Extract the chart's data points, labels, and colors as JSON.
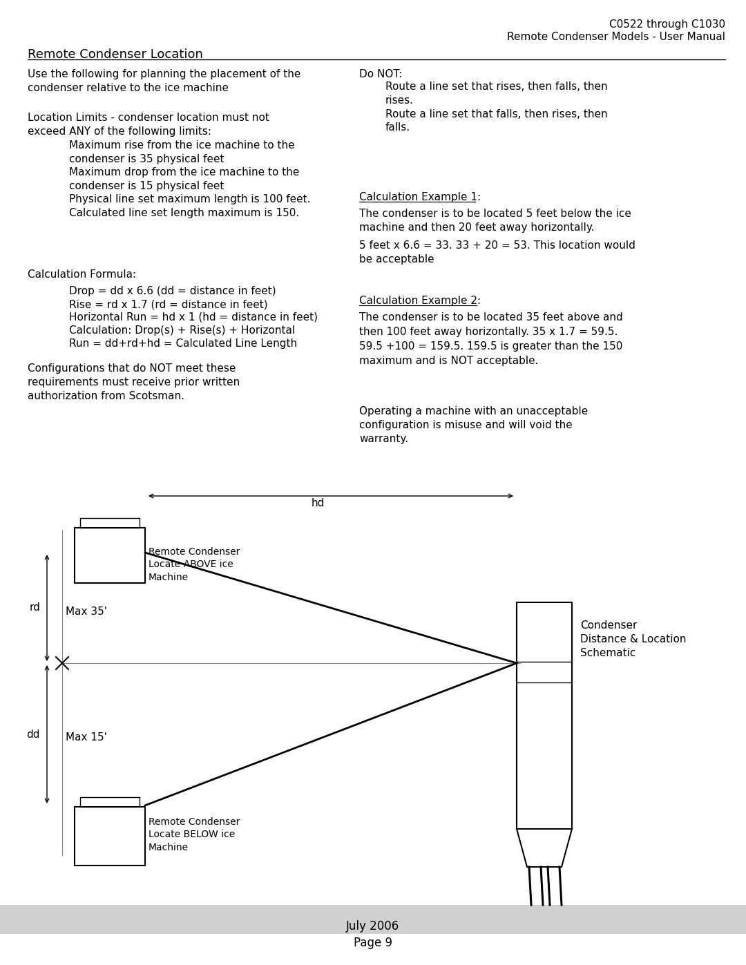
{
  "header_right_line1": "C0522 through C1030",
  "header_right_line2": "Remote Condenser Models - User Manual",
  "section_title": "Remote Condenser Location",
  "col1_para1": "Use the following for planning the placement of the\ncondenser relative to the ice machine",
  "col2_donot_title": "Do NOT:",
  "col2_donot_body": "Route a line set that rises, then falls, then\nrises.\nRoute a line set that falls, then rises, then\nfalls.",
  "col1_limits_title": "Location Limits - condenser location must not\nexceed ANY of the following limits:",
  "col1_limits_items": [
    "Maximum rise from the ice machine to the\ncondenser is 35 physical feet",
    "Maximum drop from the ice machine to the\ncondenser is 15 physical feet",
    "Physical line set maximum length is 100 feet.",
    "Calculated line set length maximum is 150."
  ],
  "col2_ex1_title": "Calculation Example 1:",
  "col2_ex1_body": "The condenser is to be located 5 feet below the ice\nmachine and then 20 feet away horizontally.",
  "col2_ex1_calc": "5 feet x 6.6 = 33. 33 + 20 = 53. This location would\nbe acceptable",
  "col1_formula_title": "Calculation Formula:",
  "col1_formula_items": [
    "Drop = dd x 6.6 (dd = distance in feet)",
    "Rise = rd x 1.7 (rd = distance in feet)",
    "Horizontal Run = hd x 1 (hd = distance in feet)",
    "Calculation: Drop(s) + Rise(s) + Horizontal",
    "Run = dd+rd+hd = Calculated Line Length"
  ],
  "col2_ex2_title": "Calculation Example 2:",
  "col2_ex2_body": "The condenser is to be located 35 feet above and\nthen 100 feet away horizontally. 35 x 1.7 = 59.5.\n59.5 +100 = 159.5. 159.5 is greater than the 150\nmaximum and is NOT acceptable.",
  "col1_config": "Configurations that do NOT meet these\nrequirements must receive prior written\nauthorization from Scotsman.",
  "col2_operating": "Operating a machine with an unacceptable\nconfiguration is misuse and will void the\nwarranty.",
  "diagram_label_hd": "hd",
  "diagram_label_rd": "rd",
  "diagram_label_dd": "dd",
  "diagram_label_max35": "Max 35'",
  "diagram_label_max15": "Max 15'",
  "diagram_label_above": "Remote Condenser\nLocate ABOVE ice\nMachine",
  "diagram_label_below": "Remote Condenser\nLocate BELOW ice\nMachine",
  "diagram_label_condenser": "Condenser\nDistance & Location\nSchematic",
  "footer_line1": "July 2006",
  "footer_line2": "Page 9",
  "bg_color": "#ffffff",
  "text_color": "#000000",
  "footer_bar_color": "#d0d0d0"
}
